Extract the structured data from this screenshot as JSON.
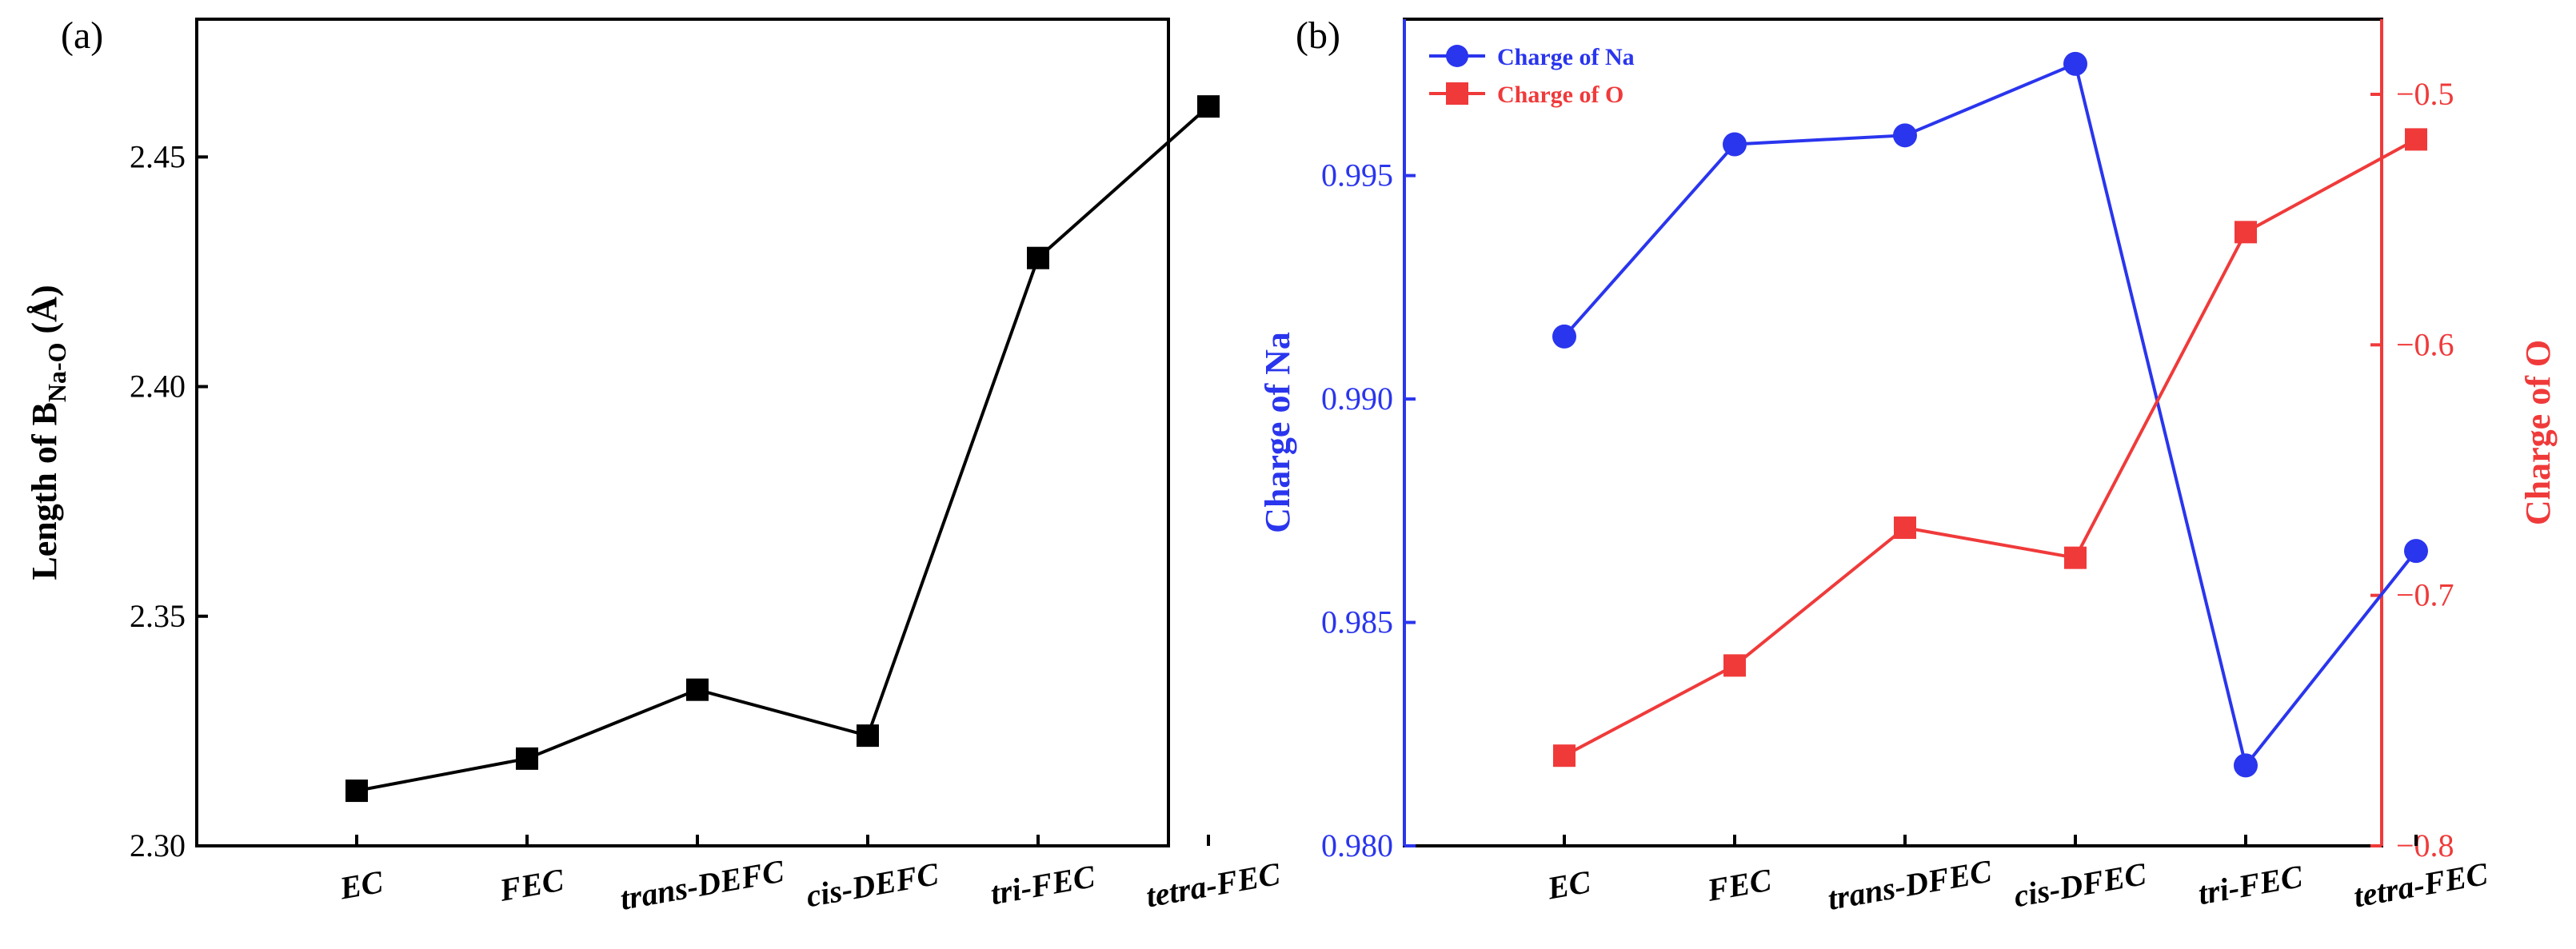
{
  "chart_data": [
    {
      "panel_label": "(a)",
      "type": "line",
      "categories": [
        "EC",
        "FEC",
        "trans-DEFC",
        "cis-DEFC",
        "tri-FEC",
        "tetra-FEC"
      ],
      "series": [
        {
          "name": "Length of B Na-O",
          "color": "#000000",
          "marker": "square",
          "values": [
            2.312,
            2.319,
            2.334,
            2.324,
            2.428,
            2.461
          ]
        }
      ],
      "ylabel": {
        "main": "Length of B",
        "sub": "Na-O",
        "unit": " (Å)"
      },
      "ylim": [
        2.3,
        2.48
      ],
      "yticks": [
        2.3,
        2.35,
        2.4,
        2.45
      ],
      "ytick_labels": [
        "2.30",
        "2.35",
        "2.40",
        "2.45"
      ],
      "legend": null
    },
    {
      "panel_label": "(b)",
      "type": "line",
      "categories": [
        "EC",
        "FEC",
        "trans-DFEC",
        "cis-DFEC",
        "tri-FEC",
        "tetra-FEC"
      ],
      "series": [
        {
          "name": "Charge of Na",
          "axis": "left",
          "color": "#2a35ee",
          "marker": "circle",
          "values": [
            0.9914,
            0.9957,
            0.9959,
            0.9975,
            0.9818,
            0.9866
          ]
        },
        {
          "name": "Charge of O",
          "axis": "right",
          "color": "#f03a3a",
          "marker": "square",
          "values": [
            -0.764,
            -0.728,
            -0.673,
            -0.685,
            -0.555,
            -0.518
          ]
        }
      ],
      "left_axis": {
        "label": "Charge of Na",
        "color": "#2a35ee",
        "ylim": [
          0.98,
          0.9985
        ],
        "ticks": [
          0.98,
          0.985,
          0.99,
          0.995
        ],
        "tick_labels": [
          "0.980",
          "0.985",
          "0.990",
          "0.995"
        ]
      },
      "right_axis": {
        "label": "Charge of O",
        "color": "#f03a3a",
        "ylim": [
          -0.8,
          -0.47
        ],
        "ticks": [
          -0.8,
          -0.7,
          -0.6,
          -0.5
        ],
        "tick_labels": [
          "−0.8",
          "−0.7",
          "−0.6",
          "−0.5"
        ]
      },
      "legend": {
        "position": "top-left",
        "entries": [
          "Charge of Na",
          "Charge of O"
        ]
      }
    }
  ]
}
